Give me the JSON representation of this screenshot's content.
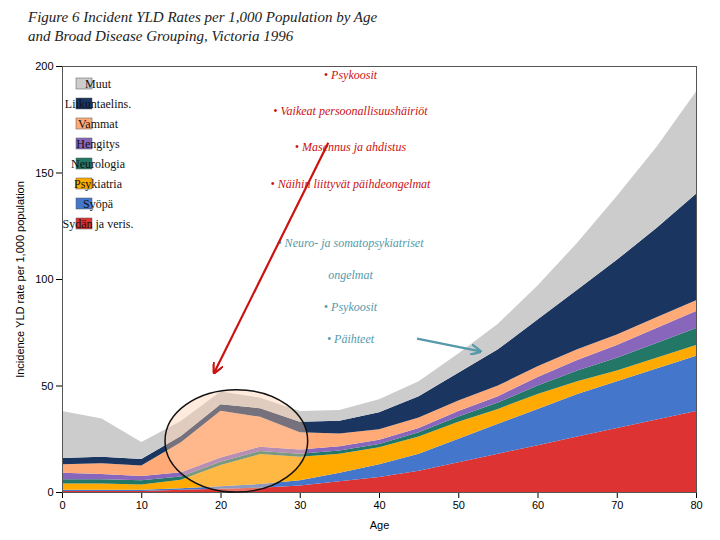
{
  "chart_data": {
    "type": "area",
    "stacked": true,
    "title": "Figure 6 Incident YLD Rates per 1,000 Population by Age",
    "subtitle": "and Broad Disease Grouping, Victoria 1996",
    "xlabel": "Age",
    "ylabel": "Incidence YLD rate per 1,000 population",
    "x": [
      0,
      5,
      10,
      15,
      20,
      25,
      30,
      35,
      40,
      45,
      50,
      55,
      60,
      65,
      70,
      75,
      80
    ],
    "series": [
      {
        "name": "Sydän ja veris.",
        "color": "#dd3333",
        "values": [
          0.5,
          0.5,
          0.5,
          1,
          1.5,
          2,
          3,
          5,
          7,
          10,
          14,
          18,
          22,
          26,
          30,
          34,
          38
        ]
      },
      {
        "name": "Syöpä",
        "color": "#4477cc",
        "values": [
          0.5,
          0.5,
          0.5,
          0.8,
          1.2,
          1.8,
          2.5,
          4,
          6,
          8,
          11,
          14,
          17,
          20,
          22,
          24,
          26
        ]
      },
      {
        "name": "Psykiatria",
        "color": "#ffaa00",
        "values": [
          3,
          3,
          2.5,
          4,
          10,
          14,
          11,
          9,
          8,
          8,
          8,
          7,
          7,
          6,
          5,
          5,
          5
        ]
      },
      {
        "name": "Neurologia",
        "color": "#227766",
        "values": [
          2,
          2,
          2,
          1.5,
          1.5,
          1.5,
          1.5,
          1.5,
          1.5,
          2,
          2.5,
          3,
          4,
          5,
          6,
          7,
          8
        ]
      },
      {
        "name": "Hengitys",
        "color": "#8866bb",
        "values": [
          3,
          2.5,
          2,
          2,
          2,
          2,
          2,
          2,
          2,
          2,
          2.5,
          3,
          4,
          5,
          6,
          7,
          8
        ]
      },
      {
        "name": "Vammat",
        "color": "#ffaa77",
        "values": [
          4,
          5,
          5,
          14,
          22,
          14,
          8,
          6,
          5,
          5,
          5,
          5,
          5,
          5,
          5,
          5,
          5
        ]
      },
      {
        "name": "Liikuntaelins.",
        "color": "#1a3560",
        "values": [
          3,
          3,
          3,
          3,
          3,
          4,
          5,
          6,
          8,
          10,
          13,
          17,
          22,
          28,
          35,
          42,
          50
        ]
      },
      {
        "name": "Muut",
        "color": "#cccccc",
        "values": [
          22,
          18,
          8,
          7,
          6,
          5,
          5,
          5,
          6,
          7,
          9,
          12,
          16,
          22,
          30,
          38,
          48
        ]
      }
    ],
    "xlim": [
      0,
      80
    ],
    "ylim": [
      0,
      200
    ],
    "xticks": [
      0,
      10,
      20,
      30,
      40,
      50,
      60,
      70,
      80
    ],
    "yticks": [
      0,
      50,
      100,
      150,
      200
    ],
    "grid": false,
    "legend": "upper left",
    "annotations": [
      {
        "color": "#cc1111",
        "lines": [
          "• Psykoosit",
          "• Vaikeat persoonallisuushäiriöt",
          "• Masennus ja ahdistus",
          "• Näihin liittyvät päihdeongelmat"
        ]
      },
      {
        "color": "#5599aa",
        "lines": [
          "• Neuro- ja somatopsykiatriset",
          "ongelmat",
          "• Psykoosit",
          "• Päihteet"
        ]
      }
    ]
  }
}
